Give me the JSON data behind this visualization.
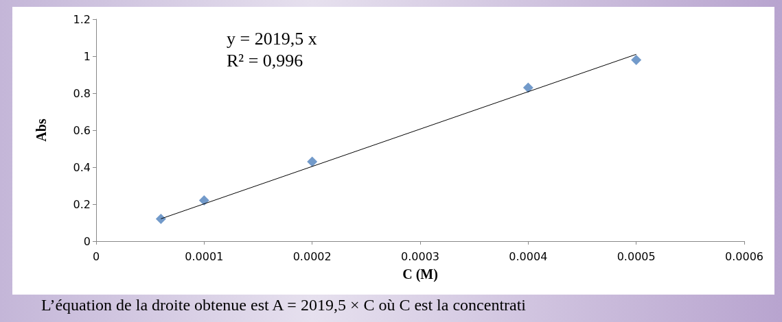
{
  "chart_data": {
    "type": "scatter",
    "xlabel": "C (M)",
    "ylabel": "Abs",
    "x": [
      6e-05,
      0.0001,
      0.0002,
      0.0004,
      0.0005
    ],
    "series": [
      {
        "color": "#4f81bd",
        "values": [
          0.12,
          0.22,
          0.43,
          0.83,
          0.98
        ],
        "marker": "diamond"
      },
      {
        "type": "line",
        "color": "#000000",
        "x": [
          6e-05,
          0.0005
        ],
        "values": [
          0.121,
          1.01
        ],
        "marker": "none",
        "line_style": "solid"
      }
    ],
    "xlim": [
      0,
      0.0006
    ],
    "xticks": [
      0,
      0.0001,
      0.0002,
      0.0003,
      0.0004,
      0.0005,
      0.0006
    ],
    "ylim": [
      0,
      1.2
    ],
    "yticks": [
      0,
      0.2,
      0.4,
      0.6,
      0.8,
      1,
      1.2
    ],
    "grid": false,
    "annotations": [
      "y = 2019,5 x",
      "R² = 0,996",
      "L’équation de la droite obtenue est A = 2019,5 × C où C est la concentrati"
    ]
  }
}
